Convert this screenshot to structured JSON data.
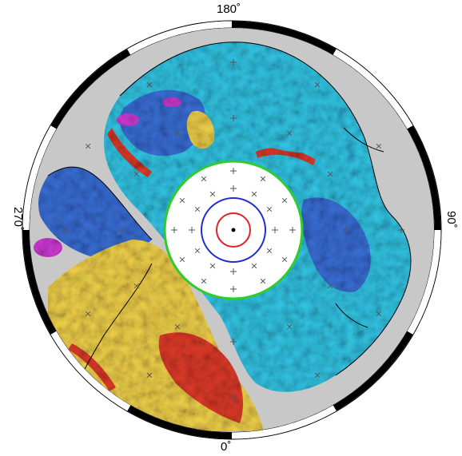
{
  "map": {
    "longitude_labels": {
      "top": "180˚",
      "bottom": "0˚",
      "left": "270˚",
      "right": "90˚"
    },
    "colors": {
      "land": "#c8c8c8",
      "ocean_low": "#3a6fd8",
      "ocean_mid": "#33c6e6",
      "anomaly_high": "#e03b2a",
      "anomaly_warm": "#f2d24b",
      "anomaly_peak": "#d43bd8",
      "polar_gap_outline": "#2ecc2e",
      "ring_outer": "#1d2fd1",
      "ring_inner": "#e0202a",
      "frame": "#000000"
    }
  }
}
